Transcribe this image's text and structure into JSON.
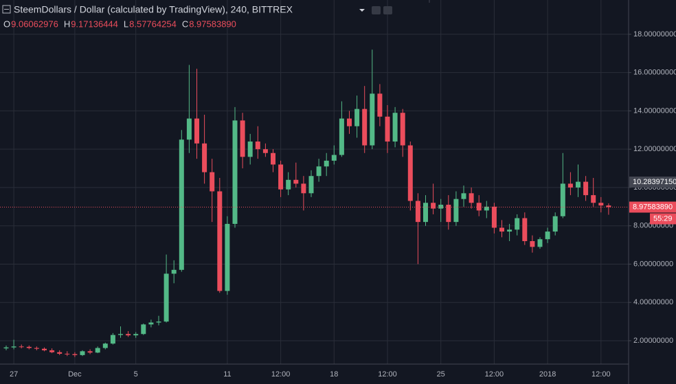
{
  "chart_data": {
    "type": "candlestick",
    "title": "SteemDollars / Dollar (calculated by TradingView), 240, BITTREX",
    "ohlc_legend": [
      {
        "key": "O",
        "value": "9.06062976"
      },
      {
        "key": "H",
        "value": "9.17136444"
      },
      {
        "key": "L",
        "value": "8.57764254"
      },
      {
        "key": "C",
        "value": "8.97583890"
      }
    ],
    "categories": [
      null,
      "27",
      null,
      null,
      null,
      null,
      null,
      null,
      null,
      "Dec",
      null,
      null,
      null,
      null,
      null,
      null,
      null,
      "5",
      null,
      null,
      null,
      null,
      null,
      null,
      null,
      null,
      null,
      null,
      null,
      "11",
      null,
      null,
      null,
      null,
      null,
      null,
      "12:00",
      null,
      null,
      null,
      null,
      null,
      null,
      "18",
      null,
      null,
      null,
      null,
      null,
      null,
      "12:00",
      null,
      null,
      null,
      null,
      null,
      null,
      "25",
      null,
      null,
      null,
      null,
      null,
      null,
      "12:00",
      null,
      null,
      null,
      null,
      null,
      null,
      "2018",
      null,
      null,
      null,
      null,
      null,
      null,
      "12:00",
      null
    ],
    "open": [
      1.6,
      1.65,
      1.7,
      1.68,
      1.62,
      1.58,
      1.5,
      1.4,
      1.32,
      1.3,
      1.25,
      1.45,
      1.38,
      1.62,
      1.85,
      2.3,
      2.35,
      2.28,
      2.35,
      2.85,
      2.95,
      3.0,
      5.5,
      5.7,
      12.5,
      13.6,
      12.3,
      10.8,
      9.8,
      4.6,
      8.1,
      13.5,
      11.6,
      12.4,
      12.0,
      11.8,
      11.2,
      9.9,
      10.4,
      10.2,
      9.7,
      10.6,
      11.1,
      11.4,
      11.7,
      13.6,
      13.2,
      14.1,
      12.2,
      14.9,
      13.7,
      12.4,
      13.9,
      12.2,
      9.3,
      8.2,
      9.2,
      8.9,
      9.1,
      8.2,
      9.4,
      9.7,
      9.2,
      8.8,
      9.0,
      7.9,
      7.7,
      7.8,
      8.4,
      7.2,
      6.9,
      7.3,
      7.7,
      8.5,
      10.2,
      10.0,
      10.3,
      9.6,
      9.2,
      9.06062976
    ],
    "high": [
      1.75,
      2.05,
      1.8,
      1.75,
      1.7,
      1.65,
      1.6,
      1.5,
      1.45,
      1.4,
      1.5,
      1.55,
      1.7,
      1.9,
      2.4,
      2.75,
      2.5,
      2.45,
      2.9,
      3.1,
      3.3,
      6.5,
      6.2,
      13.0,
      16.4,
      16.2,
      13.8,
      11.5,
      10.5,
      8.5,
      14.2,
      13.9,
      12.8,
      13.2,
      12.3,
      12.0,
      11.4,
      10.8,
      11.3,
      10.6,
      10.9,
      11.5,
      11.8,
      12.2,
      14.5,
      14.0,
      14.8,
      15.3,
      17.2,
      15.4,
      14.3,
      14.2,
      14.1,
      12.4,
      9.7,
      9.6,
      10.2,
      9.4,
      9.6,
      9.8,
      10.1,
      10.0,
      9.6,
      9.3,
      9.2,
      8.3,
      8.1,
      8.6,
      8.7,
      7.5,
      7.4,
      7.9,
      8.7,
      11.8,
      10.8,
      11.2,
      10.6,
      10.5,
      9.5,
      9.17136444
    ],
    "low": [
      1.5,
      1.55,
      1.6,
      1.55,
      1.5,
      1.45,
      1.35,
      1.25,
      1.2,
      1.15,
      1.2,
      1.3,
      1.35,
      1.55,
      1.8,
      2.15,
      2.2,
      2.15,
      2.3,
      2.7,
      2.8,
      2.95,
      5.0,
      5.6,
      11.8,
      11.5,
      10.2,
      8.2,
      4.5,
      4.4,
      7.9,
      11.0,
      11.2,
      11.5,
      11.6,
      10.8,
      9.5,
      9.6,
      10.0,
      8.8,
      9.5,
      10.3,
      10.6,
      11.2,
      11.6,
      12.8,
      12.6,
      11.8,
      12.0,
      13.2,
      11.8,
      12.1,
      11.6,
      8.8,
      6.0,
      8.0,
      8.6,
      8.2,
      7.8,
      8.0,
      9.0,
      8.9,
      8.5,
      8.4,
      7.6,
      7.4,
      7.2,
      7.5,
      7.0,
      6.6,
      6.8,
      7.1,
      7.5,
      8.4,
      9.6,
      9.5,
      9.3,
      9.0,
      8.7,
      8.57764254
    ],
    "close": [
      1.65,
      1.7,
      1.68,
      1.62,
      1.58,
      1.5,
      1.4,
      1.32,
      1.3,
      1.25,
      1.45,
      1.38,
      1.62,
      1.85,
      2.3,
      2.35,
      2.28,
      2.35,
      2.85,
      2.95,
      3.0,
      5.5,
      5.7,
      12.5,
      13.6,
      12.3,
      10.8,
      9.8,
      4.6,
      8.1,
      13.5,
      11.6,
      12.4,
      12.0,
      11.8,
      11.2,
      9.9,
      10.4,
      10.2,
      9.7,
      10.6,
      11.1,
      11.4,
      11.7,
      13.6,
      13.2,
      14.1,
      12.2,
      14.9,
      13.7,
      12.4,
      13.9,
      12.2,
      9.3,
      8.2,
      9.2,
      8.9,
      9.1,
      8.2,
      9.4,
      9.7,
      9.2,
      8.8,
      9.0,
      7.9,
      7.7,
      7.8,
      8.4,
      7.2,
      6.9,
      7.3,
      7.7,
      8.5,
      10.2,
      10.0,
      10.3,
      9.6,
      9.2,
      9.06062976,
      8.9758389
    ],
    "up_color": "#53b987",
    "down_color": "#eb4d5c",
    "ylim": [
      0.78,
      19.79
    ],
    "yticks": [
      {
        "value": 2,
        "label": "2.00000000"
      },
      {
        "value": 4,
        "label": "4.00000000"
      },
      {
        "value": 6,
        "label": "6.00000000"
      },
      {
        "value": 8,
        "label": "8.00000000"
      },
      {
        "value": 10,
        "label": "10.00000000"
      },
      {
        "value": 12,
        "label": "12.00000000"
      },
      {
        "value": 14,
        "label": "14.00000000"
      },
      {
        "value": 16,
        "label": "16.00000000"
      },
      {
        "value": 18,
        "label": "18.00000000"
      }
    ],
    "grid": true,
    "last_price": {
      "value": 8.9758389,
      "label": "8.97583890"
    },
    "countdown": "55:29",
    "marker_price": {
      "value": 10.2839715,
      "label": "10.28397150"
    }
  }
}
